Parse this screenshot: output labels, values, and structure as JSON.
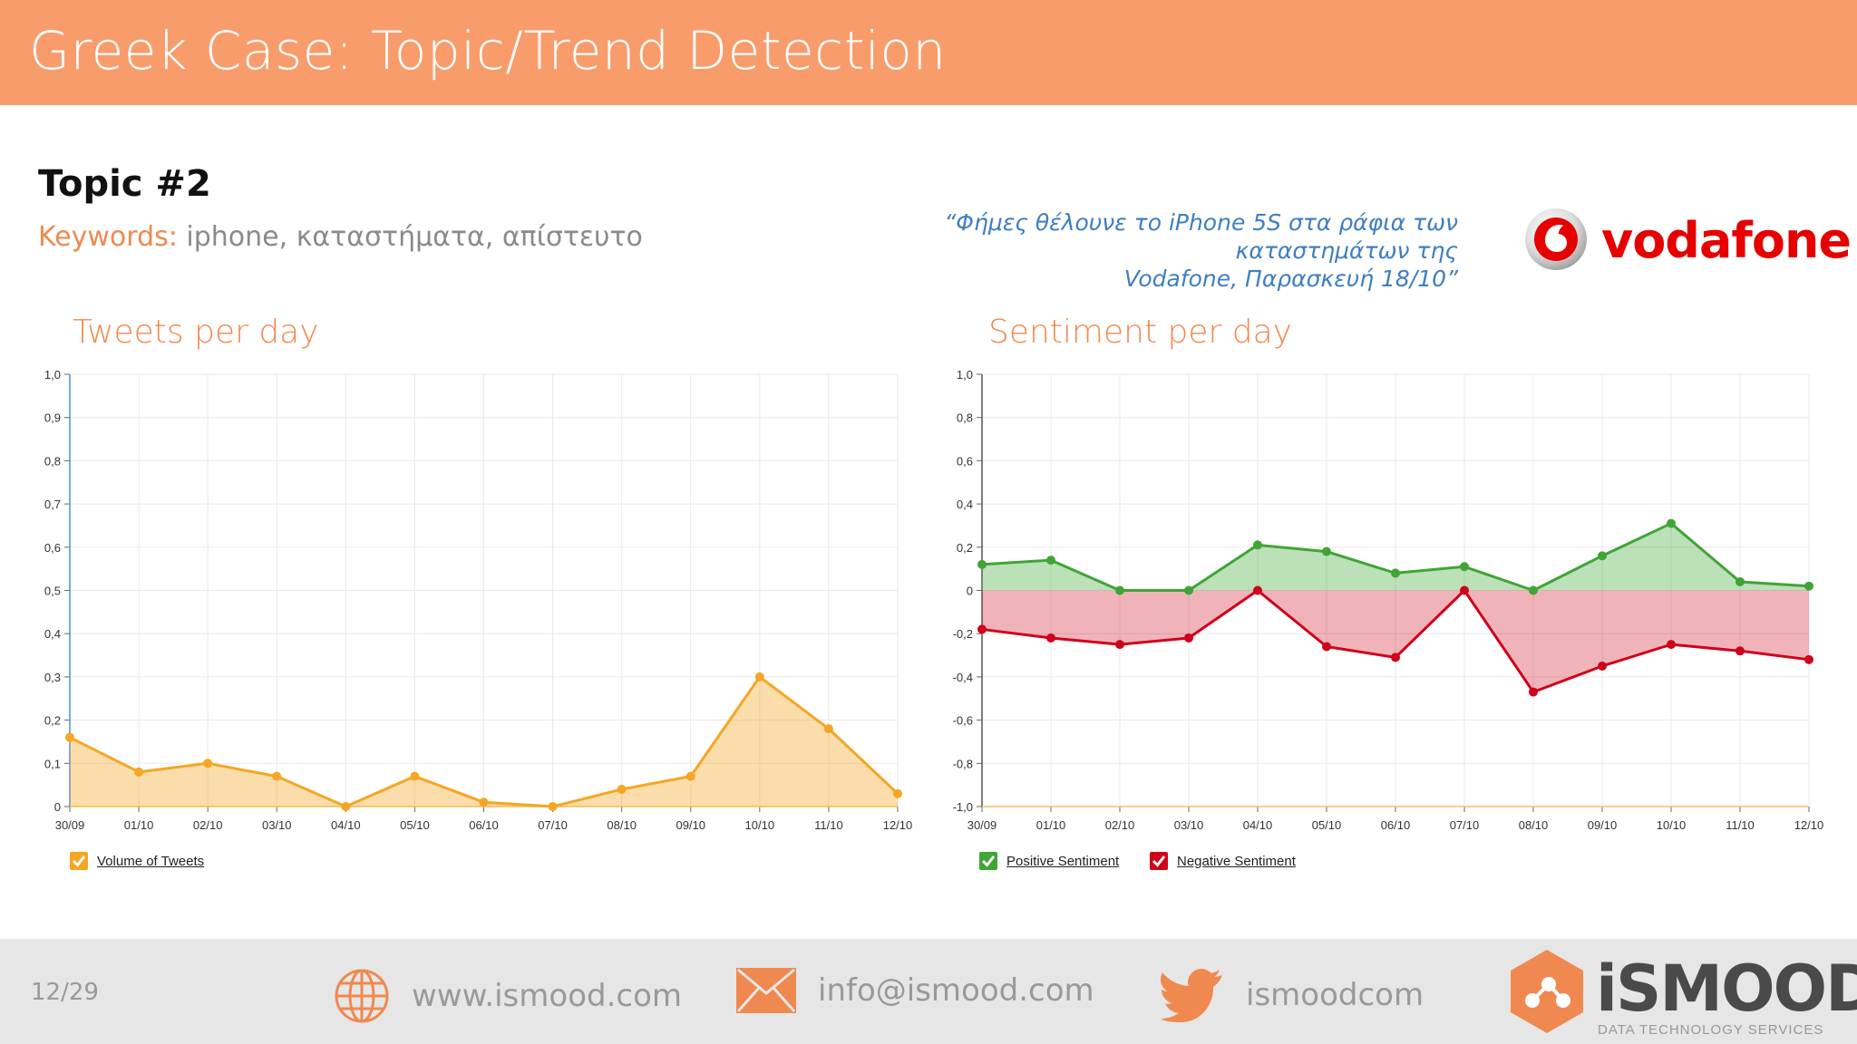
{
  "header": {
    "title": "Greek Case: Topic/Trend Detection"
  },
  "topic": {
    "title": "Topic #2",
    "keywords_label": "Keywords:",
    "keywords": " iphone, καταστήματα, απίστευτο"
  },
  "quote": {
    "line1": "“Φήμες θέλουνε το iPhone 5S στα ράφια των καταστημάτων της",
    "line2": "Vodafone, Παρασκευή 18/10”"
  },
  "brand_logo": {
    "text": "vodafone",
    "color": "#e60000"
  },
  "colors": {
    "header_bg": "#f99c6b",
    "accent": "#f0894f",
    "volume": "#f5a623",
    "positive": "#3fa535",
    "negative": "#d0021b"
  },
  "chart_data": [
    {
      "type": "area",
      "title": "Tweets per day",
      "categories": [
        "30/09",
        "01/10",
        "02/10",
        "03/10",
        "04/10",
        "05/10",
        "06/10",
        "07/10",
        "08/10",
        "09/10",
        "10/10",
        "11/10",
        "12/10"
      ],
      "series": [
        {
          "name": "Volume of Tweets",
          "values": [
            0.16,
            0.08,
            0.1,
            0.07,
            0.0,
            0.07,
            0.01,
            0.0,
            0.04,
            0.07,
            0.3,
            0.18,
            0.03
          ]
        }
      ],
      "yticks": [
        "0",
        "0,1",
        "0,2",
        "0,3",
        "0,4",
        "0,5",
        "0,6",
        "0,7",
        "0,8",
        "0,9",
        "1,0"
      ],
      "ylim": [
        0,
        1.0
      ],
      "grid": true,
      "legend": "bottom-left"
    },
    {
      "type": "area",
      "title": "Sentiment per day",
      "categories": [
        "30/09",
        "01/10",
        "02/10",
        "03/10",
        "04/10",
        "05/10",
        "06/10",
        "07/10",
        "08/10",
        "09/10",
        "10/10",
        "11/10",
        "12/10"
      ],
      "series": [
        {
          "name": "Positive Sentiment",
          "values": [
            0.12,
            0.14,
            0.0,
            0.0,
            0.21,
            0.18,
            0.08,
            0.11,
            0.0,
            0.16,
            0.31,
            0.04,
            0.02
          ]
        },
        {
          "name": "Negative Sentiment",
          "values": [
            -0.18,
            -0.22,
            -0.25,
            -0.22,
            0.0,
            -0.26,
            -0.31,
            0.0,
            -0.47,
            -0.35,
            -0.25,
            -0.28,
            -0.32
          ]
        }
      ],
      "yticks": [
        "-1,0",
        "-0,8",
        "-0,6",
        "-0,4",
        "-0,2",
        "0",
        "0,2",
        "0,4",
        "0,6",
        "0,8",
        "1,0"
      ],
      "ylim": [
        -1.0,
        1.0
      ],
      "grid": true,
      "legend": "bottom-left"
    }
  ],
  "footer": {
    "page": "12/29",
    "website": "www.ismood.com",
    "email": "info@ismood.com",
    "twitter": "ismoodcom",
    "brand": "iSMOOD",
    "tagline": "DATA TECHNOLOGY SERVICES"
  }
}
